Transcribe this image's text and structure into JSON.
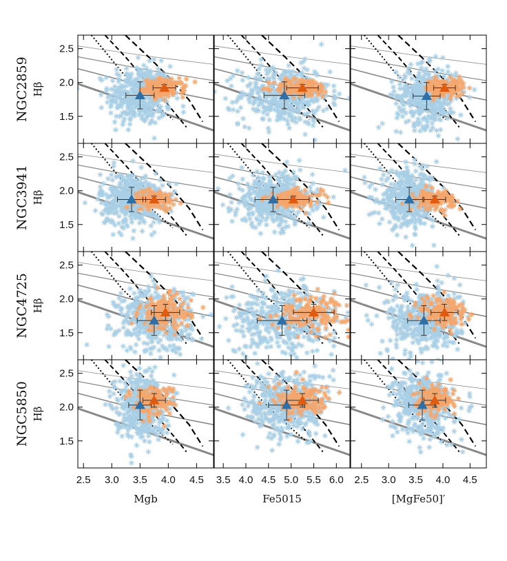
{
  "figure": {
    "rows": [
      "NGC2859",
      "NGC3941",
      "NGC4725",
      "NGC5850"
    ],
    "ylabel": "Hβ",
    "yticks": [
      "1.5",
      "2.0",
      "2.5"
    ],
    "ylim": [
      1.1,
      2.7
    ],
    "columns": [
      {
        "xlabel": "Mgb",
        "xlim": [
          2.4,
          4.8
        ],
        "xticks": [
          "2.5",
          "3.0",
          "3.5",
          "4.0",
          "4.5"
        ]
      },
      {
        "xlabel": "Fe5015",
        "xlim": [
          3.3,
          6.3
        ],
        "xticks": [
          "3.5",
          "4.0",
          "4.5",
          "5.0",
          "5.5",
          "6.0"
        ]
      },
      {
        "xlabel": "[MgFe50]′",
        "xlim": [
          2.3,
          4.8
        ],
        "xticks": [
          "2.5",
          "3.0",
          "3.5",
          "4.0",
          "4.5"
        ]
      }
    ],
    "colors": {
      "disc_points": "#a9cfe6",
      "bulge_points": "#f5a66c",
      "disc_marker": "#2e6fa8",
      "bulge_marker": "#e05a10",
      "model_grid": "#000000",
      "model_grid_gray": "#888888"
    }
  },
  "chart_data": {
    "type": "scatter",
    "panels": [
      {
        "row": "NGC2859",
        "column": "Mgb",
        "disc": {
          "x": 3.5,
          "y": 1.81,
          "xerr": 0.25,
          "yerr": 0.2
        },
        "bulge": {
          "x": 3.93,
          "y": 1.92,
          "xerr": 0.2,
          "yerr": 0.05
        }
      },
      {
        "row": "NGC2859",
        "column": "Fe5015",
        "disc": {
          "x": 4.85,
          "y": 1.81,
          "xerr": 0.45,
          "yerr": 0.2
        },
        "bulge": {
          "x": 5.25,
          "y": 1.92,
          "xerr": 0.35,
          "yerr": 0.05
        }
      },
      {
        "row": "NGC2859",
        "column": "[MgFe50]′",
        "disc": {
          "x": 3.7,
          "y": 1.8,
          "xerr": 0.25,
          "yerr": 0.2
        },
        "bulge": {
          "x": 4.03,
          "y": 1.92,
          "xerr": 0.2,
          "yerr": 0.05
        }
      },
      {
        "row": "NGC3941",
        "column": "Mgb",
        "disc": {
          "x": 3.35,
          "y": 1.87,
          "xerr": 0.25,
          "yerr": 0.18
        },
        "bulge": {
          "x": 3.75,
          "y": 1.87,
          "xerr": 0.2,
          "yerr": 0.05
        }
      },
      {
        "row": "NGC3941",
        "column": "Fe5015",
        "disc": {
          "x": 4.6,
          "y": 1.87,
          "xerr": 0.4,
          "yerr": 0.18
        },
        "bulge": {
          "x": 5.05,
          "y": 1.87,
          "xerr": 0.35,
          "yerr": 0.05
        }
      },
      {
        "row": "NGC3941",
        "column": "[MgFe50]′",
        "disc": {
          "x": 3.38,
          "y": 1.87,
          "xerr": 0.25,
          "yerr": 0.18
        },
        "bulge": {
          "x": 3.85,
          "y": 1.87,
          "xerr": 0.2,
          "yerr": 0.05
        }
      },
      {
        "row": "NGC4725",
        "column": "Mgb",
        "disc": {
          "x": 3.75,
          "y": 1.68,
          "xerr": 0.3,
          "yerr": 0.22
        },
        "bulge": {
          "x": 3.95,
          "y": 1.8,
          "xerr": 0.25,
          "yerr": 0.12
        }
      },
      {
        "row": "NGC4725",
        "column": "Fe5015",
        "disc": {
          "x": 4.8,
          "y": 1.68,
          "xerr": 0.55,
          "yerr": 0.22
        },
        "bulge": {
          "x": 5.5,
          "y": 1.8,
          "xerr": 0.45,
          "yerr": 0.12
        }
      },
      {
        "row": "NGC4725",
        "column": "[MgFe50]′",
        "disc": {
          "x": 3.65,
          "y": 1.68,
          "xerr": 0.3,
          "yerr": 0.22
        },
        "bulge": {
          "x": 4.03,
          "y": 1.8,
          "xerr": 0.25,
          "yerr": 0.12
        }
      },
      {
        "row": "NGC5850",
        "column": "Mgb",
        "disc": {
          "x": 3.5,
          "y": 2.03,
          "xerr": 0.2,
          "yerr": 0.22
        },
        "bulge": {
          "x": 3.75,
          "y": 2.1,
          "xerr": 0.2,
          "yerr": 0.1
        }
      },
      {
        "row": "NGC5850",
        "column": "Fe5015",
        "disc": {
          "x": 4.9,
          "y": 2.03,
          "xerr": 0.4,
          "yerr": 0.22
        },
        "bulge": {
          "x": 5.25,
          "y": 2.1,
          "xerr": 0.35,
          "yerr": 0.1
        }
      },
      {
        "row": "NGC5850",
        "column": "[MgFe50]′",
        "disc": {
          "x": 3.62,
          "y": 2.03,
          "xerr": 0.25,
          "yerr": 0.22
        },
        "bulge": {
          "x": 3.85,
          "y": 2.1,
          "xerr": 0.2,
          "yerr": 0.1
        }
      }
    ]
  }
}
